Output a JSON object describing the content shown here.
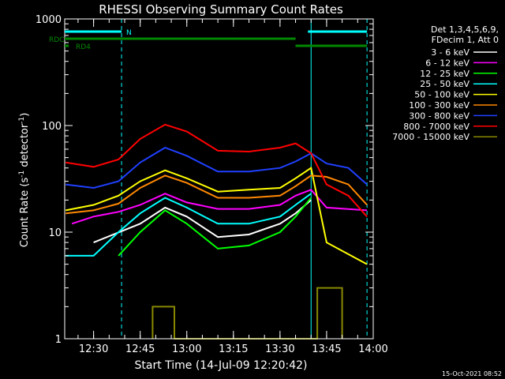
{
  "chart_data": {
    "type": "line",
    "title": "RHESSI Observing Summary Count Rates",
    "xlabel": "Start Time (14-Jul-09 12:20:42)",
    "ylabel_main": "Count Rate (s",
    "ylabel_sup1": "-1",
    "ylabel_mid": " detector",
    "ylabel_sup2": "-1",
    "ylabel_end": ")",
    "yscale": "log",
    "ylim": [
      1,
      1000
    ],
    "xlim": [
      "12:20:42",
      "14:00"
    ],
    "x_ticks": [
      "12:30",
      "12:45",
      "13:00",
      "13:15",
      "13:30",
      "13:45",
      "14:00"
    ],
    "y_ticks": [
      "1",
      "10",
      "100",
      "1000"
    ],
    "legend_header": [
      "Det 1,3,4,5,6,9,",
      "FDecim 1, Att 0"
    ],
    "series": [
      {
        "name": "3 - 6 keV",
        "color": "#ffffff",
        "points": [
          [
            "12:30",
            8
          ],
          [
            "12:45",
            12
          ],
          [
            "12:53",
            17
          ],
          [
            "13:00",
            14
          ],
          [
            "13:10",
            9
          ],
          [
            "13:20",
            9.5
          ],
          [
            "13:30",
            12
          ],
          [
            "13:35",
            15
          ],
          [
            "13:40",
            20
          ]
        ]
      },
      {
        "name": "6 - 12 keV",
        "color": "#ff00ff",
        "points": [
          [
            "12:23",
            12
          ],
          [
            "12:30",
            14
          ],
          [
            "12:38",
            15.5
          ],
          [
            "12:45",
            18
          ],
          [
            "12:53",
            23
          ],
          [
            "13:00",
            19
          ],
          [
            "13:10",
            16.5
          ],
          [
            "13:20",
            16.5
          ],
          [
            "13:30",
            18
          ],
          [
            "13:35",
            22
          ],
          [
            "13:40",
            25
          ],
          [
            "13:45",
            17
          ],
          [
            "13:58",
            16
          ]
        ]
      },
      {
        "name": "12 - 25 keV",
        "color": "#00ff00",
        "points": [
          [
            "12:38",
            6
          ],
          [
            "12:45",
            10
          ],
          [
            "12:53",
            16
          ],
          [
            "13:00",
            12
          ],
          [
            "13:10",
            7
          ],
          [
            "13:20",
            7.5
          ],
          [
            "13:30",
            10
          ],
          [
            "13:35",
            14
          ],
          [
            "13:40",
            21
          ]
        ]
      },
      {
        "name": "25 - 50 keV",
        "color": "#00ffff",
        "points": [
          [
            "12:21",
            6
          ],
          [
            "12:30",
            6
          ],
          [
            "12:38",
            10
          ],
          [
            "12:45",
            15
          ],
          [
            "12:53",
            21
          ],
          [
            "13:00",
            17
          ],
          [
            "13:10",
            12
          ],
          [
            "13:20",
            12
          ],
          [
            "13:30",
            14
          ],
          [
            "13:35",
            18
          ],
          [
            "13:40",
            23
          ]
        ]
      },
      {
        "name": "50 - 100 keV",
        "color": "#ffff00",
        "points": [
          [
            "12:21",
            16
          ],
          [
            "12:30",
            18
          ],
          [
            "12:38",
            22
          ],
          [
            "12:45",
            30
          ],
          [
            "12:53",
            38
          ],
          [
            "13:00",
            32
          ],
          [
            "13:10",
            24
          ],
          [
            "13:20",
            25
          ],
          [
            "13:30",
            26
          ],
          [
            "13:35",
            32
          ],
          [
            "13:40",
            40
          ],
          [
            "13:45",
            8
          ],
          [
            "13:58",
            5
          ]
        ]
      },
      {
        "name": "100 - 300 keV",
        "color": "#ff8800",
        "points": [
          [
            "12:21",
            15
          ],
          [
            "12:30",
            16
          ],
          [
            "12:38",
            18.5
          ],
          [
            "12:45",
            26
          ],
          [
            "12:53",
            34
          ],
          [
            "13:00",
            29
          ],
          [
            "13:10",
            21
          ],
          [
            "13:20",
            21
          ],
          [
            "13:30",
            22
          ],
          [
            "13:35",
            27
          ],
          [
            "13:40",
            34
          ],
          [
            "13:45",
            33
          ],
          [
            "13:52",
            28
          ],
          [
            "13:58",
            18
          ]
        ]
      },
      {
        "name": "300 - 800 keV",
        "color": "#2040ff",
        "points": [
          [
            "12:21",
            28
          ],
          [
            "12:30",
            26
          ],
          [
            "12:38",
            30
          ],
          [
            "12:45",
            45
          ],
          [
            "12:53",
            62
          ],
          [
            "13:00",
            52
          ],
          [
            "13:10",
            37
          ],
          [
            "13:20",
            37
          ],
          [
            "13:30",
            40
          ],
          [
            "13:35",
            46
          ],
          [
            "13:40",
            55
          ],
          [
            "13:45",
            44
          ],
          [
            "13:52",
            40
          ],
          [
            "13:58",
            28
          ]
        ]
      },
      {
        "name": "800 - 7000 keV",
        "color": "#ff0000",
        "points": [
          [
            "12:21",
            45
          ],
          [
            "12:30",
            41
          ],
          [
            "12:38",
            48
          ],
          [
            "12:45",
            75
          ],
          [
            "12:53",
            102
          ],
          [
            "13:00",
            88
          ],
          [
            "13:10",
            58
          ],
          [
            "13:20",
            57
          ],
          [
            "13:30",
            62
          ],
          [
            "13:35",
            68
          ],
          [
            "13:40",
            55
          ],
          [
            "13:45",
            28
          ],
          [
            "13:52",
            22
          ],
          [
            "13:58",
            14
          ]
        ]
      },
      {
        "name": "7000 - 15000 keV",
        "color": "#888800",
        "points": [
          [
            "12:49",
            1
          ],
          [
            "12:49",
            2
          ],
          [
            "12:56",
            2
          ],
          [
            "12:56",
            1
          ],
          [
            "13:42",
            1
          ],
          [
            "13:42",
            3
          ],
          [
            "13:50",
            3
          ],
          [
            "13:50",
            1
          ]
        ]
      }
    ],
    "flags": [
      {
        "label": "N",
        "color": "#00ffff",
        "segments": [
          [
            "12:20:42",
            "12:39"
          ],
          [
            "13:39",
            "13:58"
          ]
        ]
      },
      {
        "label": "RDC",
        "color": "#008800",
        "segments": [
          [
            "12:20:42",
            "13:35"
          ]
        ]
      },
      {
        "label": "RD4",
        "color": "#008800",
        "segments": [
          [
            "12:20:42",
            "12:22"
          ],
          [
            "13:35",
            "13:58"
          ]
        ]
      }
    ],
    "vlines_dashed": [
      "12:39",
      "13:58"
    ],
    "vlines_solid": [
      "13:40"
    ],
    "grid": false,
    "legend_position": "right"
  },
  "timestamp": "15-Oct-2021 08:52"
}
